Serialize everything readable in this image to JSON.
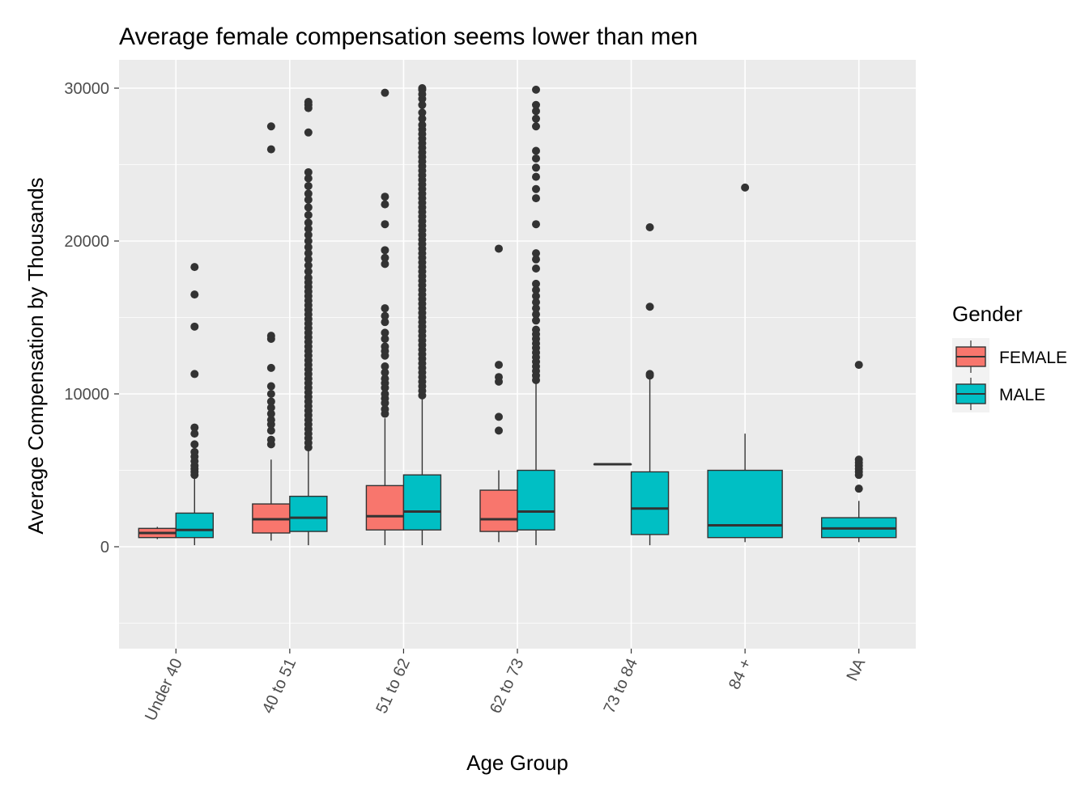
{
  "chart_data": {
    "type": "boxplot",
    "title": "Average female compensation seems lower than men",
    "xlabel": "Age Group",
    "ylabel": "Average Compensation by Thousands",
    "ylim": [
      -6500,
      31800
    ],
    "yticks": [
      0,
      10000,
      20000,
      30000
    ],
    "ytick_labels": [
      "0",
      "10000",
      "20000",
      "30000"
    ],
    "grid": true,
    "categories": [
      "Under 40",
      "40 to 51",
      "51 to 62",
      "62 to 73",
      "73 to 84",
      "84 +",
      "NA"
    ],
    "legend": {
      "title": "Gender",
      "position": "right",
      "entries": [
        {
          "label": "FEMALE",
          "color": "#F8766D"
        },
        {
          "label": "MALE",
          "color": "#00BFC4"
        }
      ]
    },
    "series": [
      {
        "name": "FEMALE",
        "color": "#F8766D",
        "boxes": [
          {
            "category": "Under 40",
            "whisker_low": 500,
            "q1": 600,
            "median": 900,
            "q3": 1200,
            "whisker_high": 1300,
            "outliers": []
          },
          {
            "category": "40 to 51",
            "whisker_low": 400,
            "q1": 900,
            "median": 1800,
            "q3": 2800,
            "whisker_high": 5700,
            "outliers": [
              6700,
              7000,
              7600,
              8000,
              8300,
              8700,
              9100,
              9500,
              10000,
              10500,
              11700,
              13600,
              13800,
              26000,
              27500
            ]
          },
          {
            "category": "51 to 62",
            "whisker_low": 100,
            "q1": 1100,
            "median": 2000,
            "q3": 4000,
            "whisker_high": 8400,
            "outliers": [
              8700,
              9000,
              9400,
              9700,
              10000,
              10400,
              10700,
              11000,
              11400,
              11800,
              12500,
              12800,
              13100,
              13600,
              14000,
              14700,
              15100,
              15600,
              18500,
              18900,
              19400,
              21100,
              22400,
              22900,
              29700
            ]
          },
          {
            "category": "62 to 73",
            "whisker_low": 300,
            "q1": 1000,
            "median": 1800,
            "q3": 3700,
            "whisker_high": 5000,
            "outliers": [
              7600,
              8500,
              10800,
              11100,
              11900,
              19500
            ]
          },
          {
            "category": "73 to 84",
            "whisker_low": 5400,
            "q1": 5400,
            "median": 5400,
            "q3": 5400,
            "whisker_high": 5400,
            "outliers": []
          }
        ]
      },
      {
        "name": "MALE",
        "color": "#00BFC4",
        "boxes": [
          {
            "category": "Under 40",
            "whisker_low": 100,
            "q1": 600,
            "median": 1100,
            "q3": 2200,
            "whisker_high": 4500,
            "outliers": [
              4700,
              4900,
              5100,
              5300,
              5600,
              5900,
              6200,
              6700,
              7400,
              7800,
              11300,
              14400,
              16500,
              18300
            ]
          },
          {
            "category": "40 to 51",
            "whisker_low": 100,
            "q1": 1000,
            "median": 1900,
            "q3": 3300,
            "whisker_high": 6300,
            "outliers": [
              6500,
              6800,
              7100,
              7400,
              7700,
              8000,
              8300,
              8600,
              8900,
              9200,
              9500,
              9800,
              10100,
              10400,
              10700,
              11000,
              11300,
              11600,
              11900,
              12200,
              12500,
              12800,
              13100,
              13400,
              13700,
              14000,
              14300,
              14600,
              14900,
              15200,
              15500,
              15800,
              16100,
              16400,
              16700,
              17000,
              17300,
              17600,
              18000,
              18400,
              18800,
              19200,
              19600,
              20000,
              20400,
              20800,
              21200,
              21700,
              22200,
              22700,
              23100,
              23600,
              24100,
              24500,
              27100,
              28700,
              28900,
              29100
            ]
          },
          {
            "category": "51 to 62",
            "whisker_low": 100,
            "q1": 1100,
            "median": 2300,
            "q3": 4700,
            "whisker_high": 9700,
            "outliers": [
              9900,
              10200,
              10500,
              10800,
              11100,
              11400,
              11700,
              12000,
              12300,
              12600,
              12900,
              13200,
              13500,
              13800,
              14100,
              14400,
              14700,
              15000,
              15300,
              15600,
              15900,
              16200,
              16500,
              16800,
              17100,
              17400,
              17700,
              18000,
              18300,
              18600,
              18900,
              19200,
              19500,
              19800,
              20100,
              20400,
              20700,
              21000,
              21300,
              21600,
              21900,
              22200,
              22500,
              22800,
              23100,
              23400,
              23700,
              24000,
              24300,
              24600,
              24900,
              25200,
              25500,
              25800,
              26100,
              26400,
              26700,
              27000,
              27300,
              27600,
              28000,
              28400,
              28900,
              29300,
              29600,
              29900,
              30000
            ]
          },
          {
            "category": "62 to 73",
            "whisker_low": 100,
            "q1": 1100,
            "median": 2300,
            "q3": 5000,
            "whisker_high": 10700,
            "outliers": [
              10900,
              11200,
              11500,
              11800,
              12100,
              12400,
              12700,
              13000,
              13300,
              13600,
              13900,
              14200,
              14800,
              15200,
              15600,
              16000,
              16400,
              16800,
              17200,
              18200,
              18800,
              19200,
              21100,
              22800,
              23400,
              24200,
              24800,
              25400,
              25900,
              27500,
              28000,
              28500,
              28900,
              29900
            ]
          },
          {
            "category": "73 to 84",
            "whisker_low": 100,
            "q1": 800,
            "median": 2500,
            "q3": 4900,
            "whisker_high": 11000,
            "outliers": [
              11200,
              11300,
              15700,
              20900
            ]
          },
          {
            "category": "84 +",
            "whisker_low": 300,
            "q1": 600,
            "median": 1400,
            "q3": 5000,
            "whisker_high": 7400,
            "outliers": [
              23500
            ]
          },
          {
            "category": "NA",
            "whisker_low": 300,
            "q1": 600,
            "median": 1200,
            "q3": 1900,
            "whisker_high": 3000,
            "outliers": [
              3800,
              4700,
              4900,
              5100,
              5300,
              5500,
              5700,
              11900
            ]
          }
        ]
      }
    ]
  }
}
